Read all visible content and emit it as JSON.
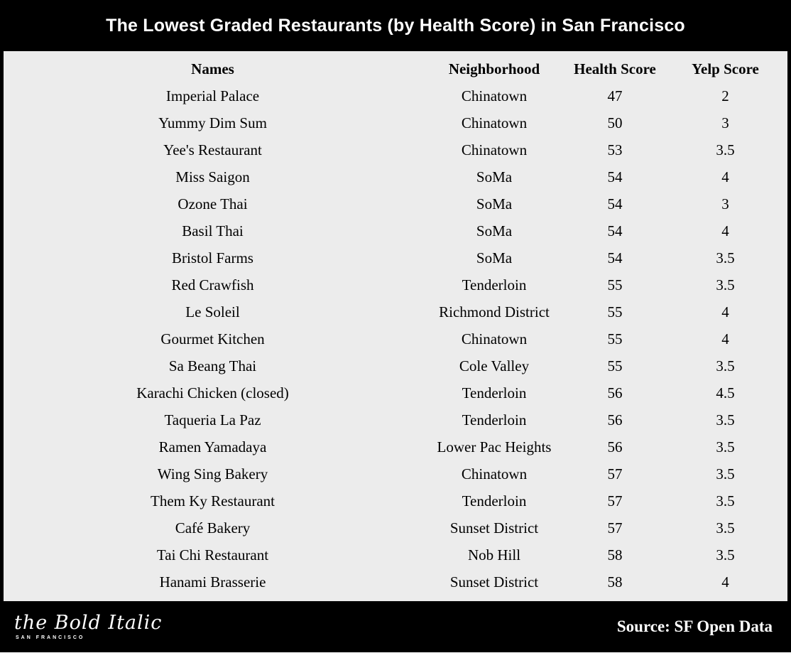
{
  "header": {
    "title": "The Lowest Graded Restaurants (by Health Score) in San Francisco"
  },
  "chart_data": {
    "type": "table",
    "title": "The Lowest Graded Restaurants (by Health Score) in San Francisco",
    "columns": [
      "Names",
      "Neighborhood",
      "Health Score",
      "Yelp Score"
    ],
    "rows": [
      [
        "Imperial Palace",
        "Chinatown",
        "47",
        "2"
      ],
      [
        "Yummy Dim Sum",
        "Chinatown",
        "50",
        "3"
      ],
      [
        "Yee's Restaurant",
        "Chinatown",
        "53",
        "3.5"
      ],
      [
        "Miss Saigon",
        "SoMa",
        "54",
        "4"
      ],
      [
        "Ozone Thai",
        "SoMa",
        "54",
        "3"
      ],
      [
        "Basil Thai",
        "SoMa",
        "54",
        "4"
      ],
      [
        "Bristol Farms",
        "SoMa",
        "54",
        "3.5"
      ],
      [
        "Red Crawfish",
        "Tenderloin",
        "55",
        "3.5"
      ],
      [
        "Le Soleil",
        "Richmond District",
        "55",
        "4"
      ],
      [
        "Gourmet Kitchen",
        "Chinatown",
        "55",
        "4"
      ],
      [
        "Sa Beang Thai",
        "Cole Valley",
        "55",
        "3.5"
      ],
      [
        "Karachi Chicken (closed)",
        "Tenderloin",
        "56",
        "4.5"
      ],
      [
        "Taqueria La Paz",
        "Tenderloin",
        "56",
        "3.5"
      ],
      [
        "Ramen Yamadaya",
        "Lower Pac Heights",
        "56",
        "3.5"
      ],
      [
        "Wing Sing Bakery",
        "Chinatown",
        "57",
        "3.5"
      ],
      [
        "Them Ky Restaurant",
        "Tenderloin",
        "57",
        "3.5"
      ],
      [
        "Café Bakery",
        "Sunset District",
        "57",
        "3.5"
      ],
      [
        "Tai Chi Restaurant",
        "Nob Hill",
        "58",
        "3.5"
      ],
      [
        "Hanami Brasserie",
        "Sunset District",
        "58",
        "4"
      ]
    ]
  },
  "footer": {
    "logo_text": "the Bold Italic",
    "logo_subtext": "SAN FRANCISCO",
    "source": "Source: SF Open Data"
  }
}
